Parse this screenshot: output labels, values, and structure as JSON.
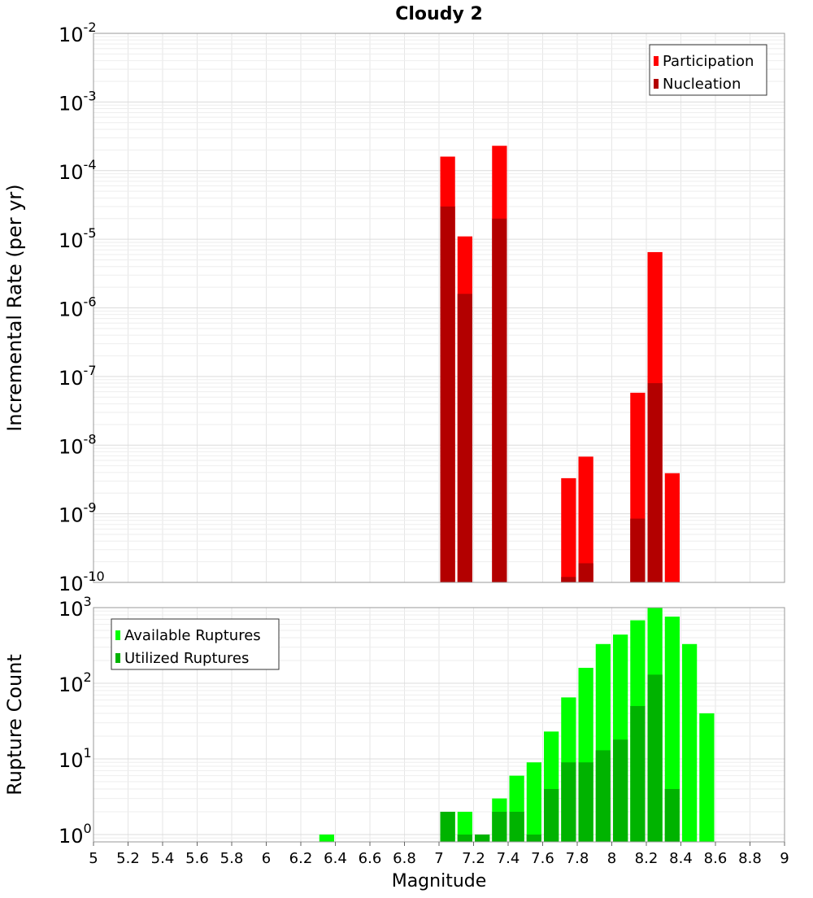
{
  "chart_data": [
    {
      "type": "bar",
      "title": "Cloudy 2",
      "ylabel": "Incremental Rate (per yr)",
      "xlabel": "",
      "yscale": "log",
      "ylim": [
        1e-10,
        0.01
      ],
      "xlim": [
        5,
        9
      ],
      "grid": true,
      "legend_position": "top-right",
      "bin_width": 0.1,
      "y_tick_exponents": [
        -10,
        -9,
        -8,
        -7,
        -6,
        -5,
        -4,
        -3,
        -2
      ],
      "series": [
        {
          "name": "Participation",
          "color": "#ff0000",
          "x": [
            7.05,
            7.15,
            7.35,
            7.75,
            7.85,
            8.15,
            8.25,
            8.35
          ],
          "values": [
            0.00016,
            1.1e-05,
            0.00023,
            3.3e-09,
            6.8e-09,
            5.8e-08,
            6.5e-06,
            3.9e-09
          ]
        },
        {
          "name": "Nucleation",
          "color": "#b30000",
          "x": [
            7.05,
            7.15,
            7.35,
            7.75,
            7.85,
            8.15,
            8.25
          ],
          "values": [
            3e-05,
            1.6e-06,
            2e-05,
            1.2e-10,
            1.9e-10,
            8.5e-10,
            8e-08
          ]
        }
      ]
    },
    {
      "type": "bar",
      "title": "",
      "ylabel": "Rupture Count",
      "xlabel": "Magnitude",
      "yscale": "log",
      "ylim": [
        0.8,
        1000
      ],
      "xlim": [
        5,
        9
      ],
      "grid": true,
      "legend_position": "top-left",
      "bin_width": 0.1,
      "y_tick_exponents": [
        0,
        1,
        2,
        3
      ],
      "x_ticks": [
        "5",
        "5.2",
        "5.4",
        "5.6",
        "5.8",
        "6",
        "6.2",
        "6.4",
        "6.6",
        "6.8",
        "7",
        "7.2",
        "7.4",
        "7.6",
        "7.8",
        "8",
        "8.2",
        "8.4",
        "8.6",
        "8.8",
        "9"
      ],
      "series": [
        {
          "name": "Available Ruptures",
          "color": "#00ff00",
          "x": [
            6.35,
            7.05,
            7.15,
            7.25,
            7.35,
            7.45,
            7.55,
            7.65,
            7.75,
            7.85,
            7.95,
            8.05,
            8.15,
            8.25,
            8.35,
            8.45,
            8.55
          ],
          "values": [
            1,
            2,
            2,
            1,
            3,
            6,
            9,
            23,
            65,
            160,
            330,
            440,
            680,
            1000,
            760,
            330,
            40
          ]
        },
        {
          "name": "Utilized Ruptures",
          "color": "#00b300",
          "x": [
            7.05,
            7.15,
            7.25,
            7.35,
            7.45,
            7.55,
            7.65,
            7.75,
            7.85,
            7.95,
            8.05,
            8.15,
            8.25,
            8.35
          ],
          "values": [
            2,
            1,
            1,
            2,
            2,
            1,
            4,
            9,
            9,
            13,
            18,
            50,
            130,
            4
          ]
        }
      ]
    }
  ]
}
